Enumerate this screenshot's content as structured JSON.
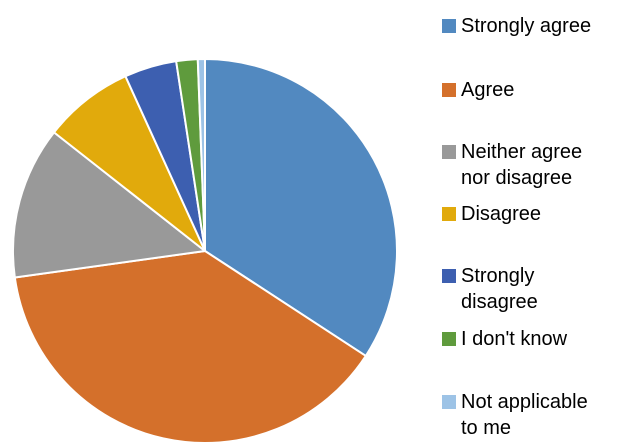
{
  "chart_data": {
    "type": "pie",
    "title": "",
    "categories": [
      "Strongly agree",
      "Agree",
      "Neither agree\nnor disagree",
      "Disagree",
      "Strongly\ndisagree",
      "I don't know",
      "Not applicable\nto me"
    ],
    "values": [
      34.2,
      38.6,
      12.8,
      7.6,
      4.4,
      1.8,
      0.6
    ],
    "colors": [
      "#5289C0",
      "#D4702B",
      "#999999",
      "#E1AA0C",
      "#3D5FB0",
      "#5F9B3D",
      "#9DC3E6"
    ],
    "legend_position": "right"
  }
}
